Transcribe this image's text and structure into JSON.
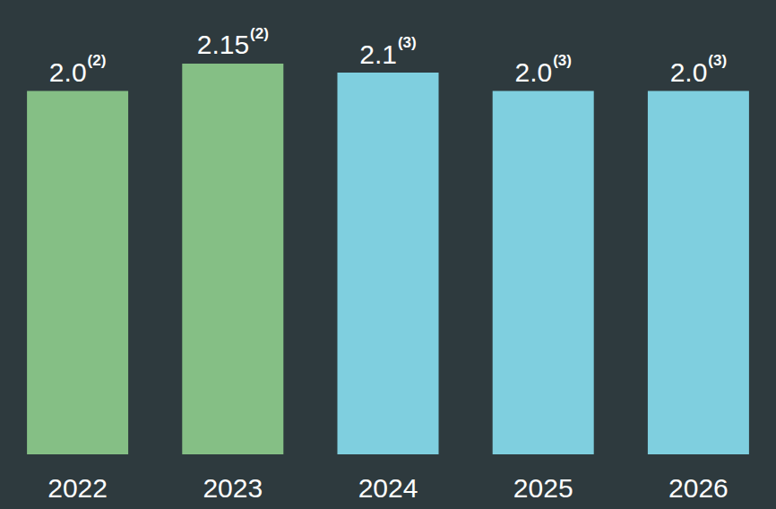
{
  "chart_data": {
    "type": "bar",
    "categories": [
      "2022",
      "2023",
      "2024",
      "2025",
      "2026"
    ],
    "values": [
      2.0,
      2.15,
      2.1,
      2.0,
      2.0
    ],
    "value_labels": [
      "2.0",
      "2.15",
      "2.1",
      "2.0",
      "2.0"
    ],
    "footnotes": [
      "(2)",
      "(2)",
      "(3)",
      "(3)",
      "(3)"
    ],
    "colors": [
      "#85bf85",
      "#85bf85",
      "#7fcfdf",
      "#7fcfdf",
      "#7fcfdf"
    ],
    "ylim": [
      0,
      2.5
    ],
    "data_labels": true,
    "grid": false,
    "tick_labels": "x"
  }
}
